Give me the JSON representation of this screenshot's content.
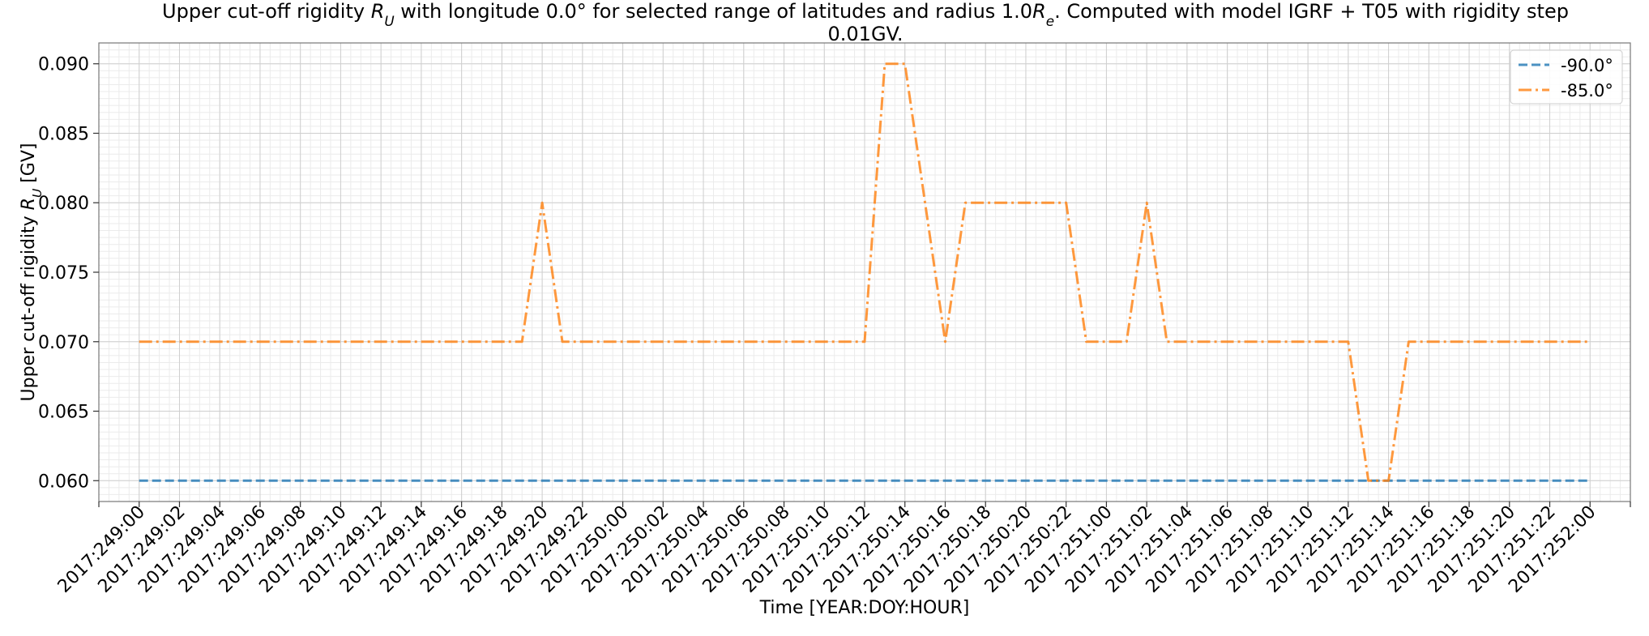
{
  "chart_data": {
    "type": "line",
    "title_line1": "Upper cut-off rigidity R_U with longitude 0.0° for selected range of latitudes and radius 1.0R_e. Computed with model IGRF + T05 with rigidity step",
    "title_line2": "0.01GV.",
    "xlabel": "Time [YEAR:DOY:HOUR]",
    "ylabel": "Upper cut-off rigidity R_U [GV]",
    "ylim": [
      0.0585,
      0.0915
    ],
    "yticks": [
      0.06,
      0.065,
      0.07,
      0.075,
      0.08,
      0.085,
      0.09
    ],
    "ytick_labels": [
      "0.060",
      "0.065",
      "0.070",
      "0.075",
      "0.080",
      "0.085",
      "0.090"
    ],
    "x_hours_range": [
      -2,
      74
    ],
    "xtick_labels": [
      "2017:249:00",
      "2017:249:02",
      "2017:249:04",
      "2017:249:06",
      "2017:249:08",
      "2017:249:10",
      "2017:249:12",
      "2017:249:14",
      "2017:249:16",
      "2017:249:18",
      "2017:249:20",
      "2017:249:22",
      "2017:250:00",
      "2017:250:02",
      "2017:250:04",
      "2017:250:06",
      "2017:250:08",
      "2017:250:10",
      "2017:250:12",
      "2017:250:14",
      "2017:250:16",
      "2017:250:18",
      "2017:250:20",
      "2017:250:22",
      "2017:251:00",
      "2017:251:02",
      "2017:251:04",
      "2017:251:06",
      "2017:251:08",
      "2017:251:10",
      "2017:251:12",
      "2017:251:14",
      "2017:251:16",
      "2017:251:18",
      "2017:251:20",
      "2017:251:22",
      "2017:252:00"
    ],
    "grid": true,
    "legend_position": "top-right",
    "series": [
      {
        "name": "-90.0°",
        "color": "#1f77b4",
        "dash": "dashed",
        "x": [
          0,
          72
        ],
        "y": [
          0.06,
          0.06
        ]
      },
      {
        "name": "-85.0°",
        "color": "#ff7f0e",
        "dash": "dashdot",
        "x": [
          0,
          19,
          20,
          21,
          36,
          37,
          38,
          40,
          41,
          46,
          47,
          49,
          50,
          51,
          60,
          61,
          62,
          63,
          64,
          72
        ],
        "y": [
          0.07,
          0.07,
          0.08,
          0.07,
          0.07,
          0.09,
          0.09,
          0.07,
          0.08,
          0.08,
          0.07,
          0.07,
          0.08,
          0.07,
          0.07,
          0.06,
          0.06,
          0.07,
          0.07,
          0.07
        ]
      }
    ]
  }
}
